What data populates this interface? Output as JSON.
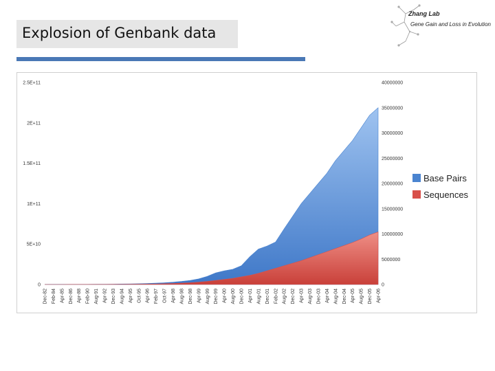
{
  "slide": {
    "title": "Explosion of Genbank data"
  },
  "logo": {
    "title": "Zhang Lab",
    "subtitle": "Gene Gain and Loss in Evolution"
  },
  "chart_data": {
    "type": "area",
    "title": "",
    "left_axis": {
      "ticks": [
        "0",
        "5E+10",
        "1E+11",
        "1.5E+11",
        "2E+11",
        "2.5E+11"
      ],
      "min": 0,
      "max": 250000000000
    },
    "right_axis": {
      "ticks": [
        "0",
        "5000000",
        "10000000",
        "15000000",
        "20000000",
        "25000000",
        "30000000",
        "35000000",
        "40000000"
      ],
      "min": 0,
      "max": 40000000
    },
    "categories": [
      "Dec-82",
      "Feb-84",
      "Apr-85",
      "Dec-86",
      "Apr-88",
      "Feb-90",
      "Aug-91",
      "Apr-92",
      "Dec-93",
      "Aug-94",
      "Apr-95",
      "Oct-95",
      "Apr-96",
      "Feb-97",
      "Oct-97",
      "Apr-98",
      "Aug-98",
      "Dec-98",
      "Apr-99",
      "Aug-99",
      "Dec-99",
      "Apr-00",
      "Aug-00",
      "Dec-00",
      "Apr-01",
      "Aug-01",
      "Dec-01",
      "Feb-02",
      "Aug-02",
      "Dec-02",
      "Apr-03",
      "Aug-03",
      "Dec-03",
      "Apr-04",
      "Aug-04",
      "Dec-04",
      "Apr-05",
      "Aug-05",
      "Dec-05",
      "Apr-06"
    ],
    "series": [
      {
        "name": "Base Pairs",
        "color": "#4a84d0",
        "axis": "right",
        "values": [
          0,
          5000,
          10000,
          15000,
          20000,
          30000,
          40000,
          50000,
          70000,
          90000,
          120000,
          150000,
          200000,
          260000,
          340000,
          450000,
          600000,
          800000,
          1100000,
          1600000,
          2300000,
          2700000,
          3000000,
          3700000,
          5500000,
          7000000,
          7600000,
          8400000,
          11000000,
          13500000,
          16000000,
          18000000,
          20000000,
          22000000,
          24500000,
          26500000,
          28500000,
          31000000,
          33500000,
          35000000
        ]
      },
      {
        "name": "Sequences",
        "color": "#d8504a",
        "axis": "right",
        "values": [
          0,
          1000,
          2000,
          3000,
          5000,
          7000,
          10000,
          14000,
          20000,
          28000,
          40000,
          55000,
          75000,
          100000,
          140000,
          190000,
          260000,
          340000,
          450000,
          600000,
          800000,
          1000000,
          1200000,
          1500000,
          1800000,
          2200000,
          2700000,
          3200000,
          3700000,
          4200000,
          4700000,
          5300000,
          5900000,
          6500000,
          7100000,
          7700000,
          8300000,
          9000000,
          9800000,
          10400000
        ]
      }
    ],
    "legend": {
      "position": "right",
      "entries": [
        "Base Pairs",
        "Sequences"
      ]
    }
  }
}
